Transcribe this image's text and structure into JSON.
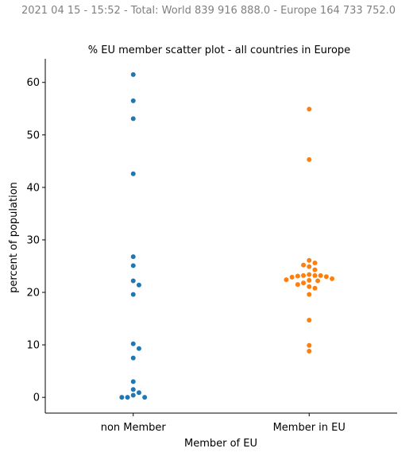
{
  "suptitle": "2021 04 15 - 15:52 - Total: World 839 916 888.0 - Europe 164 733 752.0",
  "chart_data": {
    "type": "scatter",
    "subtype": "swarm",
    "title": "% EU member scatter plot - all countries in Europe",
    "xlabel": "Member of EU",
    "ylabel": "percent of population",
    "categories": [
      "non Member",
      "Member in EU"
    ],
    "ylim": [
      -3,
      64.5
    ],
    "yticks": [
      0,
      10,
      20,
      30,
      40,
      50,
      60
    ],
    "grid": false,
    "colors": [
      "#1f77b4",
      "#ff7f0e"
    ],
    "series": [
      {
        "values": [
          61.5,
          56.5,
          53.1,
          42.6,
          26.8,
          25.1,
          22.2,
          21.4,
          19.6,
          10.2,
          9.3,
          7.5,
          3.0,
          1.5,
          0.9,
          0.4,
          0.0,
          0.0,
          0.0
        ]
      },
      {
        "values": [
          54.9,
          45.3,
          26.1,
          25.6,
          25.2,
          24.9,
          24.3,
          23.4,
          23.2,
          23.2,
          23.2,
          23.1,
          23.0,
          22.9,
          22.6,
          22.4,
          22.3,
          22.2,
          21.8,
          21.5,
          21.1,
          20.8,
          19.6,
          14.7,
          9.9,
          8.8
        ]
      }
    ]
  }
}
